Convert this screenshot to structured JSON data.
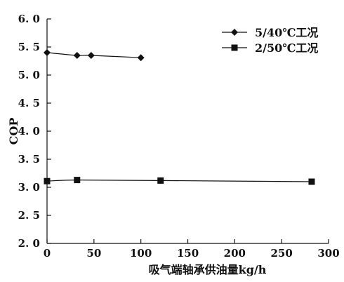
{
  "chart_data": {
    "type": "line",
    "title": "",
    "xlabel": "吸气端轴承供油量kg/h",
    "ylabel": "COP",
    "xlim": [
      0,
      300
    ],
    "ylim": [
      2.0,
      6.0
    ],
    "x_ticks": [
      0,
      50,
      100,
      150,
      200,
      250,
      300
    ],
    "y_ticks": [
      2.0,
      2.5,
      3.0,
      3.5,
      4.0,
      4.5,
      5.0,
      5.5,
      6.0
    ],
    "x_tick_labels": [
      "0",
      "50",
      "100",
      "150",
      "200",
      "250",
      "300"
    ],
    "y_tick_labels": [
      "2. 0",
      "2. 5",
      "3. 0",
      "3. 5",
      "4. 0",
      "4. 5",
      "5. 0",
      "5. 5",
      "6. 0"
    ],
    "grid": false,
    "legend": "top-right",
    "series": [
      {
        "name": "5/40℃工况",
        "marker": "diamond",
        "color": "#111111",
        "x": [
          0,
          32,
          47,
          100
        ],
        "y": [
          5.4,
          5.35,
          5.35,
          5.31
        ]
      },
      {
        "name": "2/50℃工况",
        "marker": "square",
        "color": "#111111",
        "x": [
          0,
          32,
          121,
          282
        ],
        "y": [
          3.11,
          3.13,
          3.12,
          3.1
        ]
      }
    ]
  }
}
